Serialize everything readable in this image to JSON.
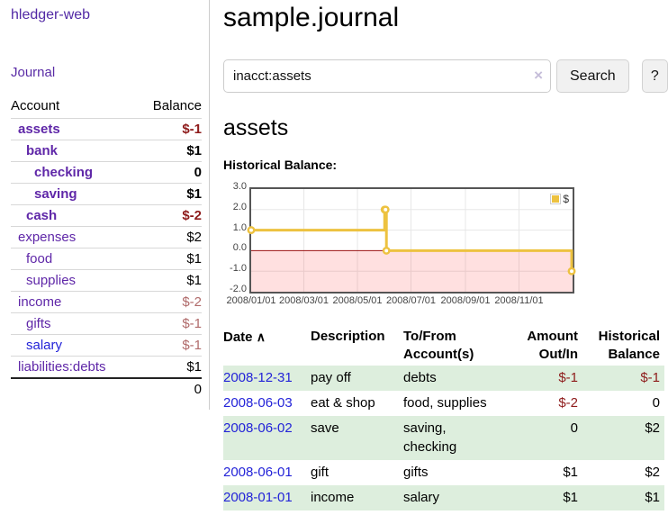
{
  "app": {
    "brand": "hledger-web"
  },
  "sidebar": {
    "nav_journal": "Journal",
    "accounts": {
      "header_account": "Account",
      "header_balance": "Balance",
      "rows": [
        {
          "name": "assets",
          "balance": "$-1",
          "depth": 1,
          "bold": true
        },
        {
          "name": "bank",
          "balance": "$1",
          "depth": 2,
          "bold": true
        },
        {
          "name": "checking",
          "balance": "0",
          "depth": 3,
          "bold": true
        },
        {
          "name": "saving",
          "balance": "$1",
          "depth": 3,
          "bold": true
        },
        {
          "name": "cash",
          "balance": "$-2",
          "depth": 2,
          "bold": true
        },
        {
          "name": "expenses",
          "balance": "$2",
          "depth": 1,
          "bold": false
        },
        {
          "name": "food",
          "balance": "$1",
          "depth": 2,
          "bold": false
        },
        {
          "name": "supplies",
          "balance": "$1",
          "depth": 2,
          "bold": false
        },
        {
          "name": "income",
          "balance": "$-2",
          "depth": 1,
          "bold": false
        },
        {
          "name": "gifts",
          "balance": "$-1",
          "depth": 2,
          "bold": false
        },
        {
          "name": "salary",
          "balance": "$-1",
          "depth": 2,
          "bold": false,
          "unvisited": true
        },
        {
          "name": "liabilities:debts",
          "balance": "$1",
          "depth": 1,
          "bold": false
        }
      ],
      "total": "0"
    }
  },
  "main": {
    "title": "sample.journal",
    "search": {
      "value": "inacct:assets",
      "clear_icon": "×",
      "button_label": "Search",
      "help_label": "?"
    },
    "account_heading": "assets",
    "chart_title": "Historical Balance:"
  },
  "chart_data": {
    "type": "line",
    "title": "Historical Balance:",
    "step": true,
    "series": [
      {
        "name": "$",
        "color": "#edc240",
        "points": [
          [
            "2008-01-01",
            1
          ],
          [
            "2008-06-01",
            2
          ],
          [
            "2008-06-02",
            2
          ],
          [
            "2008-06-03",
            0
          ],
          [
            "2008-12-31",
            -1
          ]
        ]
      }
    ],
    "ylim": [
      -2,
      3
    ],
    "yticks": [
      3.0,
      2.0,
      1.0,
      0.0,
      -1.0,
      -2.0
    ],
    "xticks": [
      "2008/01/01",
      "2008/03/01",
      "2008/05/01",
      "2008/07/01",
      "2008/09/01",
      "2008/11/01"
    ],
    "x_start": "2008-01-01",
    "x_end": "2009-01-01",
    "grid": true,
    "legend_position": "top-right",
    "legend_label": "$",
    "negative_fill": "rgba(255,0,0,0.12)",
    "zero_line_color": "#991111",
    "grid_color": "#e7e7e7"
  },
  "register": {
    "headers": {
      "date": "Date",
      "sort_icon": "∧",
      "description": "Description",
      "tofrom": "To/From Account(s)",
      "amount": "Amount Out/In",
      "balance": "Historical Balance"
    },
    "rows": [
      {
        "date": "2008-12-31",
        "description": "pay off",
        "tofrom": "debts",
        "amount": "$-1",
        "balance": "$-1"
      },
      {
        "date": "2008-06-03",
        "description": "eat & shop",
        "tofrom": "food, supplies",
        "amount": "$-2",
        "balance": "0"
      },
      {
        "date": "2008-06-02",
        "description": "save",
        "tofrom": "saving,\nchecking",
        "amount": "0",
        "balance": "$2"
      },
      {
        "date": "2008-06-01",
        "description": "gift",
        "tofrom": "gifts",
        "amount": "$1",
        "balance": "$2"
      },
      {
        "date": "2008-01-01",
        "description": "income",
        "tofrom": "salary",
        "amount": "$1",
        "balance": "$1"
      }
    ]
  }
}
